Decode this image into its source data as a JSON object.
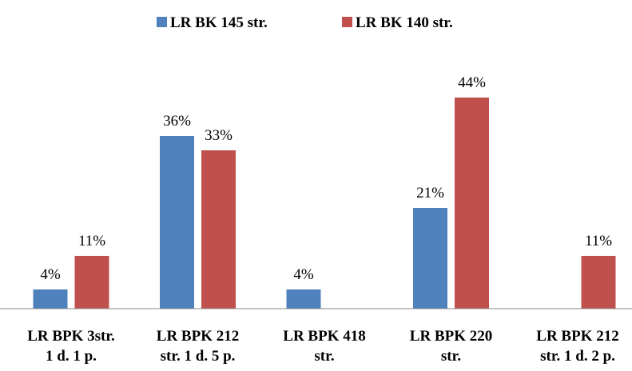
{
  "chart_data": {
    "type": "bar",
    "categories": [
      [
        "LR BPK 3str.",
        "1 d. 1 p."
      ],
      [
        "LR BPK 212",
        "str. 1 d. 5 p."
      ],
      [
        "LR BPK 418",
        "str."
      ],
      [
        "LR BPK 220",
        "str."
      ],
      [
        "LR BPK 212",
        "str. 1 d. 2 p."
      ]
    ],
    "series": [
      {
        "name": "LR BK 145 str.",
        "color": "#4f81bd",
        "values": [
          4,
          36,
          4,
          21,
          0
        ],
        "labels": [
          "4%",
          "36%",
          "4%",
          "21%",
          ""
        ]
      },
      {
        "name": "LR BK 140 str.",
        "color": "#c0504d",
        "values": [
          11,
          33,
          0,
          44,
          11
        ],
        "labels": [
          "11%",
          "33%",
          "",
          "44%",
          "11%"
        ]
      }
    ],
    "ylim": [
      0,
      50
    ],
    "unit": "%",
    "legend_position": "top",
    "grid": false
  }
}
